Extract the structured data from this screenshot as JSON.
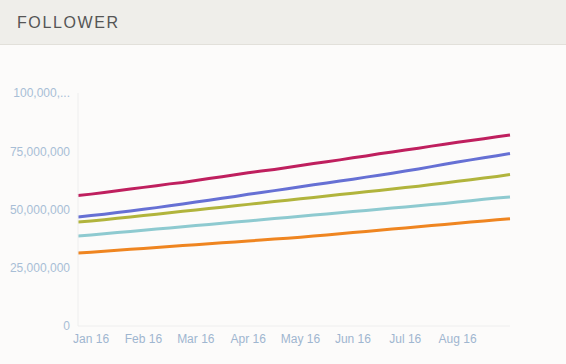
{
  "chart_data": {
    "type": "line",
    "title": "FOLLOWER",
    "categories": [
      null,
      "Jan 16",
      null,
      null,
      null,
      "Feb 16",
      null,
      null,
      null,
      "Mar 16",
      null,
      null,
      null,
      "Apr 16",
      null,
      null,
      null,
      "May 16",
      null,
      null,
      null,
      "Jun 16",
      null,
      null,
      null,
      "Jul 16",
      null,
      null,
      null,
      "Aug 16",
      null,
      null,
      null,
      null
    ],
    "ylim": [
      0,
      100000000
    ],
    "yticks": [
      0,
      {
        "value": 25000000,
        "label": "25,000,000"
      },
      {
        "value": 50000000,
        "label": "50,000,000"
      },
      {
        "value": 75000000,
        "label": "75,000,000"
      },
      {
        "value": 100000000,
        "label": "100,000,..."
      }
    ],
    "series": [
      {
        "color": "#bf1f5e",
        "values": [
          56000000,
          56600000,
          57300000,
          58000000,
          58800000,
          59500000,
          60200000,
          61000000,
          61600000,
          62400000,
          63300000,
          64100000,
          64900000,
          65800000,
          66500000,
          67200000,
          68000000,
          68900000,
          69700000,
          70500000,
          71300000,
          72200000,
          73000000,
          73900000,
          74700000,
          75500000,
          76300000,
          77200000,
          78000000,
          78900000,
          79600000,
          80400000,
          81200000,
          82000000
        ]
      },
      {
        "color": "#6670d4",
        "values": [
          46800000,
          47400000,
          48000000,
          48700000,
          49400000,
          50100000,
          50800000,
          51600000,
          52400000,
          53200000,
          54000000,
          54800000,
          55600000,
          56500000,
          57300000,
          58100000,
          58900000,
          59800000,
          60600000,
          61400000,
          62200000,
          63000000,
          63900000,
          64700000,
          65600000,
          66500000,
          67400000,
          68400000,
          69400000,
          70400000,
          71300000,
          72200000,
          73100000,
          74000000
        ]
      },
      {
        "color": "#b1b43c",
        "values": [
          44600000,
          45100000,
          45600000,
          46200000,
          46800000,
          47400000,
          48000000,
          48600000,
          49200000,
          49800000,
          50400000,
          51000000,
          51600000,
          52200000,
          52800000,
          53400000,
          54000000,
          54600000,
          55200000,
          55800000,
          56400000,
          57000000,
          57600000,
          58200000,
          58800000,
          59400000,
          60000000,
          60700000,
          61400000,
          62100000,
          62800000,
          63500000,
          64200000,
          65000000
        ]
      },
      {
        "color": "#8ecad0",
        "values": [
          38600000,
          39100000,
          39600000,
          40100000,
          40600000,
          41100000,
          41600000,
          42100000,
          42600000,
          43100000,
          43600000,
          44100000,
          44600000,
          45100000,
          45600000,
          46100000,
          46600000,
          47100000,
          47600000,
          48100000,
          48600000,
          49100000,
          49600000,
          50100000,
          50600000,
          51100000,
          51600000,
          52100000,
          52600000,
          53200000,
          53800000,
          54400000,
          54900000,
          55400000
        ]
      },
      {
        "color": "#ef8520",
        "values": [
          31300000,
          31700000,
          32100000,
          32500000,
          32900000,
          33300000,
          33700000,
          34100000,
          34500000,
          34900000,
          35300000,
          35700000,
          36100000,
          36500000,
          36900000,
          37300000,
          37700000,
          38100000,
          38600000,
          39100000,
          39600000,
          40100000,
          40600000,
          41100000,
          41600000,
          42100000,
          42600000,
          43100000,
          43600000,
          44100000,
          44600000,
          45100000,
          45600000,
          46000000
        ]
      }
    ]
  }
}
